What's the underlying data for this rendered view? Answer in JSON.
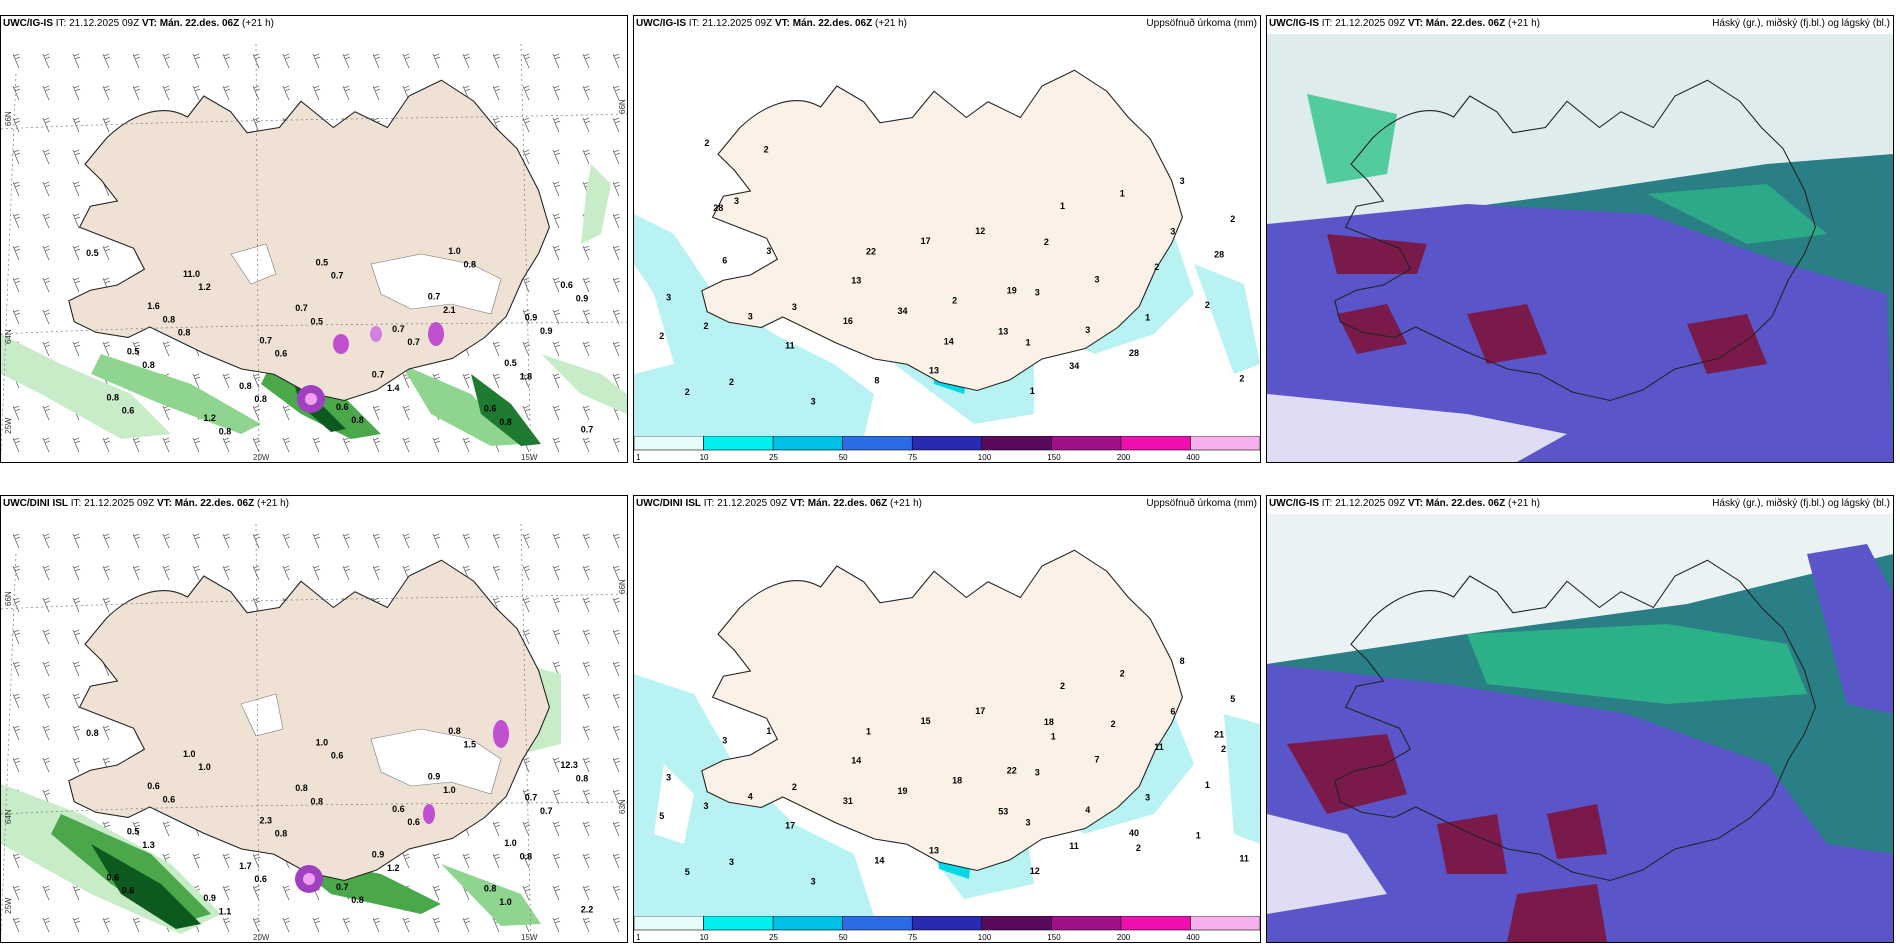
{
  "panels": [
    {
      "id": "p1",
      "model": "UWC/IG-IS",
      "it_label": "IT: 21.12.2025 09Z",
      "vt_prefix": "VT:",
      "vt": "Mán. 22.des. 06Z",
      "lead": "(+21 h)",
      "right": ""
    },
    {
      "id": "p2",
      "model": "UWC/IG-IS",
      "it_label": "IT: 21.12.2025 09Z",
      "vt_prefix": "VT:",
      "vt": "Mán. 22.des. 06Z",
      "lead": "(+21 h)",
      "right": "Uppsöfnuð úrkoma (mm)"
    },
    {
      "id": "p3",
      "model": "UWC/IG-IS",
      "it_label": "IT: 21.12.2025 09Z",
      "vt_prefix": "VT:",
      "vt": "Mán. 22.des. 06Z",
      "lead": "(+21 h)",
      "right": "Háský (gr.), miðský (fj.bl.) og lágský (bl.)"
    },
    {
      "id": "p4",
      "model": "UWC/DINI ISL",
      "it_label": "IT: 21.12.2025 09Z",
      "vt_prefix": "VT:",
      "vt": "Mán. 22.des. 06Z",
      "lead": "(+21 h)",
      "right": ""
    },
    {
      "id": "p5",
      "model": "UWC/DINI ISL",
      "it_label": "IT: 21.12.2025 09Z",
      "vt_prefix": "VT:",
      "vt": "Mán. 22.des. 06Z",
      "lead": "(+21 h)",
      "right": "Uppsöfnuð úrkoma (mm)"
    },
    {
      "id": "p6",
      "model": "UWC/IG-IS",
      "it_label": "IT: 21.12.2025 09Z",
      "vt_prefix": "VT:",
      "vt": "Mán. 22.des. 06Z",
      "lead": "(+21 h)",
      "right": "Háský (gr.), miðský (fj.bl.) og lágský (bl.)"
    }
  ],
  "axes": {
    "lat66": "66N",
    "lat64": "64N",
    "lat63": "63N",
    "lon25": "25W",
    "lon20": "20W",
    "lon15": "15W"
  },
  "legend": {
    "ticks": [
      "1",
      "10",
      "25",
      "50",
      "75",
      "100",
      "150",
      "200",
      "400"
    ],
    "colors": [
      "#e8fbfb",
      "#00f0f0",
      "#00c0e8",
      "#2a6be8",
      "#2a2ab0",
      "#5a0a5a",
      "#a0108a",
      "#f010b0",
      "#f5b0f0"
    ]
  },
  "precip_labels_top": {
    "west": [
      "3",
      "2",
      "3",
      "2",
      "3",
      "3",
      "2",
      "3",
      "2",
      "6",
      "11"
    ],
    "mid": [
      "13",
      "13",
      "19",
      "8",
      "2",
      "1",
      "34",
      "12",
      "16",
      "17",
      "13",
      "22",
      "14"
    ],
    "east": [
      "2",
      "28",
      "28",
      "34",
      "2",
      "2",
      "3",
      "3",
      "3",
      "1",
      "2",
      "1",
      "1",
      "2",
      "3",
      "3",
      "1"
    ],
    "nw": [
      "2",
      "3",
      "2",
      "28"
    ]
  },
  "precip_labels_bottom": {
    "west": [
      "3",
      "3",
      "2",
      "5",
      "4",
      "3",
      "3",
      "1",
      "5",
      "3",
      "17"
    ],
    "mid": [
      "14",
      "13",
      "22",
      "14",
      "18",
      "12",
      "19",
      "17",
      "31",
      "15",
      "53",
      "1"
    ],
    "east": [
      "18",
      "40",
      "21",
      "11",
      "11",
      "11",
      "7",
      "8",
      "3",
      "2",
      "1",
      "2",
      "3",
      "5",
      "4",
      "6",
      "3",
      "2",
      "1",
      "1",
      "2",
      "2"
    ]
  },
  "wind_labels_top": [
    "1.6",
    "0.6",
    "0.9",
    "1.2",
    "0.7",
    "0.7",
    "0.7",
    "1.0",
    "0.5",
    "0.5",
    "0.5",
    "11.0",
    "0.7",
    "0.6",
    "0.8",
    "0.7",
    "0.8",
    "0.7",
    "0.6",
    "0.8",
    "0.8",
    "0.9",
    "0.8",
    "0.7",
    "0.5",
    "0.6",
    "0.8",
    "0.8",
    "0.7",
    "1.8",
    "1.2",
    "1.4",
    "0.9",
    "0.8",
    "2.1",
    "0.6",
    "0.5",
    "0.8",
    "0.8"
  ],
  "wind_labels_bottom": [
    "0.6",
    "0.7",
    "0.7",
    "0.9",
    "0.6",
    "2.2",
    "2.3",
    "0.8",
    "0.5",
    "1.0",
    "1.0",
    "1.0",
    "0.9",
    "12.3",
    "1.7",
    "0.9",
    "0.6",
    "0.8",
    "0.8",
    "0.6",
    "0.8",
    "0.7",
    "1.1",
    "0.6",
    "0.8",
    "0.8",
    "1.5",
    "1.3",
    "0.6",
    "0.8",
    "1.0",
    "1.2",
    "0.8",
    "0.6",
    "1.0",
    "0.6",
    "0.8",
    "1.0"
  ],
  "colors": {
    "land": "#efe2d4",
    "coast": "#222222",
    "precip_light": "#b8f2f2",
    "precip_mid": "#00d8e8",
    "wind_green_light": "#c8ecc8",
    "wind_green": "#4aa84a",
    "wind_dark": "#0d5a20",
    "cloud_high": "#2a7f86",
    "cloud_mid": "#5a55c8",
    "cloud_low": "#7a1a4a",
    "cloud_green": "#2ec488"
  }
}
